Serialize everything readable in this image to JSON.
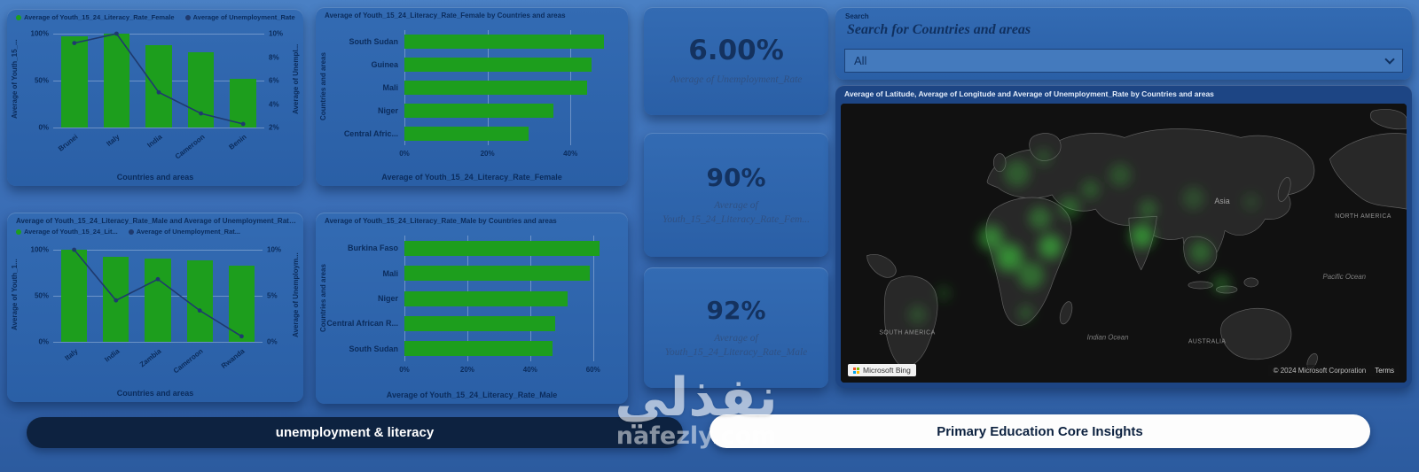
{
  "colors": {
    "bar_green": "#1d9e1d",
    "line_navy": "#1f3a6e",
    "accent_navy": "#0b2c5c"
  },
  "search": {
    "label": "Search",
    "query_text": "Search for Countries and areas",
    "dropdown_value": "All"
  },
  "kpis": [
    {
      "value": "6.00%",
      "label_lines": [
        "Average of Unemployment_Rate",
        ""
      ]
    },
    {
      "value": "90%",
      "label_lines": [
        "Average of",
        "Youth_15_24_Literacy_Rate_Fem..."
      ]
    },
    {
      "value": "92%",
      "label_lines": [
        "Average of",
        "Youth_15_24_Literacy_Rate_Male"
      ]
    }
  ],
  "map": {
    "title": "Average of Latitude, Average of Longitude and Average of Unemployment_Rate by Countries and areas",
    "attribution": "Microsoft Bing",
    "copyright": "© 2024 Microsoft Corporation",
    "terms": "Terms",
    "labels": [
      "Asia",
      "NORTH AMERICA",
      "SOUTH AMERICA",
      "Indian Ocean",
      "AUSTRALIA",
      "Pacific Ocean"
    ]
  },
  "footer_buttons": [
    {
      "label": "unemployment & literacy"
    },
    {
      "label": "Primary Education Core Insights"
    }
  ],
  "watermark": {
    "arabic": "نفذلي",
    "domain": "nafezly.com"
  },
  "chart_data": [
    {
      "type": "combo",
      "legend": [
        "Average of Youth_15_24_Literacy_Rate_Female",
        "Average of Unemployment_Rate"
      ],
      "categories": [
        "Brunei",
        "Italy",
        "India",
        "Cameroon",
        "Benin"
      ],
      "bar_series": {
        "name": "Average of Youth_15_24_Literacy_Rate_Female",
        "values": [
          97,
          100,
          88,
          80,
          52
        ]
      },
      "line_series": {
        "name": "Average of Unemployment_Rate",
        "values": [
          9.2,
          10,
          5,
          3.2,
          2.3
        ]
      },
      "left_axis": {
        "label": "Average of Youth_15_...",
        "max": 100,
        "ticks": [
          {
            "label": "0%",
            "v": 0
          },
          {
            "label": "50%",
            "v": 50
          },
          {
            "label": "100%",
            "v": 100
          }
        ]
      },
      "right_axis": {
        "label": "Average of Unempl...",
        "min": 2,
        "max": 10,
        "ticks": [
          {
            "label": "2%",
            "v": 2
          },
          {
            "label": "4%",
            "v": 4
          },
          {
            "label": "6%",
            "v": 6
          },
          {
            "label": "8%",
            "v": 8
          },
          {
            "label": "10%",
            "v": 10
          }
        ]
      },
      "xlabel": "Countries and areas"
    },
    {
      "type": "hbar",
      "title": "Average of Youth_15_24_Literacy_Rate_Female by Countries and areas",
      "categories": [
        "South Sudan",
        "Guinea",
        "Mali",
        "Niger",
        "Central Afric..."
      ],
      "values": [
        48,
        45,
        44,
        36,
        30
      ],
      "axis": {
        "max": 50,
        "ticks": [
          {
            "label": "0%",
            "v": 0
          },
          {
            "label": "20%",
            "v": 20
          },
          {
            "label": "40%",
            "v": 40
          }
        ]
      },
      "xlabel": "Average of Youth_15_24_Literacy_Rate_Female",
      "ylabel": "Countries and areas"
    },
    {
      "type": "combo",
      "title": "Average of Youth_15_24_Literacy_Rate_Male and Average of Unemployment_Rate by Countries an...",
      "legend": [
        "Average of Youth_15_24_Lit...",
        "Average of Unemployment_Rat..."
      ],
      "categories": [
        "Italy",
        "India",
        "Zambia",
        "Cameroon",
        "Rwanda"
      ],
      "bar_series": {
        "name": "Average of Youth_15_24_Literacy_Rate_Male",
        "values": [
          100,
          92,
          90,
          88,
          83
        ]
      },
      "line_series": {
        "name": "Average of Unemployment_Rate",
        "values": [
          10,
          4.5,
          6.8,
          3.4,
          0.6
        ]
      },
      "left_axis": {
        "label": "Average of Youth_1...",
        "max": 100,
        "ticks": [
          {
            "label": "0%",
            "v": 0
          },
          {
            "label": "50%",
            "v": 50
          },
          {
            "label": "100%",
            "v": 100
          }
        ]
      },
      "right_axis": {
        "label": "Average of Unemploym...",
        "min": 0,
        "max": 10,
        "ticks": [
          {
            "label": "0%",
            "v": 0
          },
          {
            "label": "5%",
            "v": 5
          },
          {
            "label": "10%",
            "v": 10
          }
        ]
      },
      "xlabel": "Countries and areas"
    },
    {
      "type": "hbar",
      "title": "Average of Youth_15_24_Literacy_Rate_Male by Countries and areas",
      "categories": [
        "Burkina Faso",
        "Mali",
        "Niger",
        "Central African R...",
        "South Sudan"
      ],
      "values": [
        62,
        59,
        52,
        48,
        47
      ],
      "axis": {
        "max": 66,
        "ticks": [
          {
            "label": "0%",
            "v": 0
          },
          {
            "label": "20%",
            "v": 20
          },
          {
            "label": "40%",
            "v": 40
          },
          {
            "label": "60%",
            "v": 60
          }
        ]
      },
      "xlabel": "Average of Youth_15_24_Literacy_Rate_Male",
      "ylabel": "Countries and areas"
    }
  ]
}
